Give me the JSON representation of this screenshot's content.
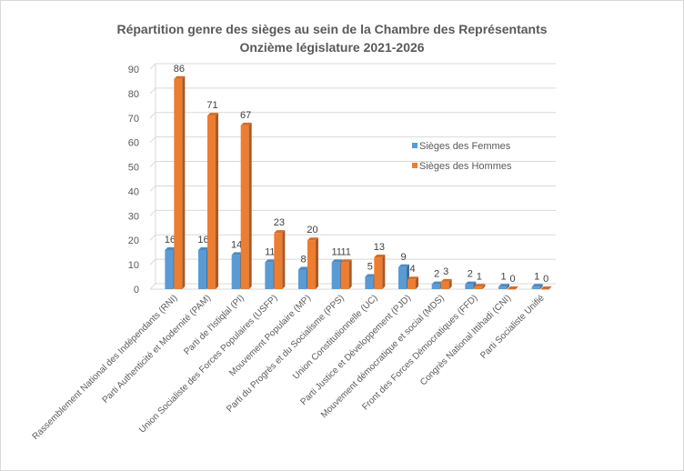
{
  "chart_data": {
    "type": "bar",
    "title": "Répartition genre des sièges au sein de la Chambre des Représentants",
    "subtitle": "Onzième législature 2021-2026",
    "categories": [
      "Rassemblement National des Indépendants (RNI)",
      "Parti Authenticité et Modernité (PAM)",
      "Parti de l'Istiqlal (PI)",
      "Union Socialiste des Forces Populaires (USFP)",
      "Mouvement Populaire (MP)",
      "Parti du Progrès et du Socialisme (PPS)",
      "Union Constitutionnelle (UC)",
      "Parti Justice et Développement (PJD)",
      "Mouvement démocratique et social (MDS)",
      "Front des Forces Démocratiques (FFD)",
      "Congrès National Ittihadi (CNI)",
      "Parti Socialiste Unifié"
    ],
    "series": [
      {
        "name": "Sièges des Femmes",
        "color": "#5b9bd5",
        "values": [
          16,
          16,
          14,
          11,
          8,
          11,
          5,
          9,
          2,
          2,
          1,
          1
        ]
      },
      {
        "name": "Sièges des Hommes",
        "color": "#ed7d31",
        "values": [
          86,
          71,
          67,
          23,
          20,
          11,
          13,
          4,
          3,
          1,
          0,
          0
        ]
      }
    ],
    "yticks": [
      "0",
      "10",
      "20",
      "30",
      "40",
      "50",
      "60",
      "70",
      "80",
      "90"
    ],
    "ylim": [
      0,
      90
    ],
    "grid": true,
    "legend": "right"
  }
}
